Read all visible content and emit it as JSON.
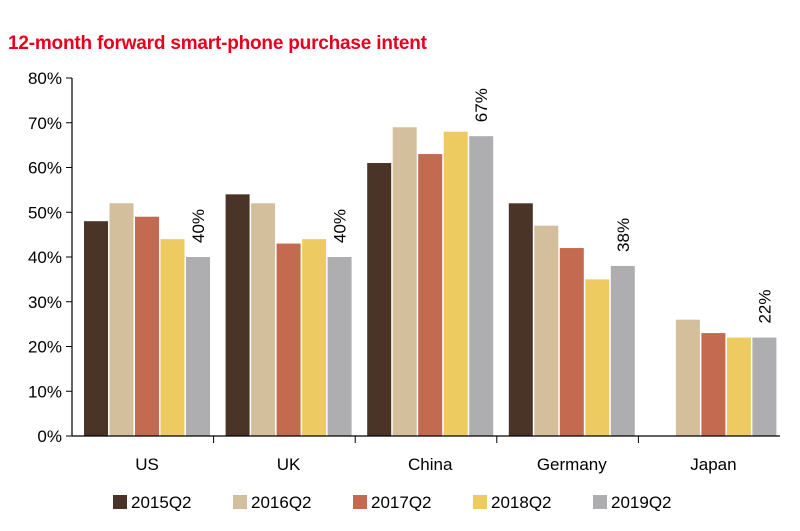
{
  "chart_data": {
    "type": "bar",
    "title": "12-month forward smart-phone purchase intent",
    "xlabel": "",
    "ylabel": "",
    "ylim": [
      0,
      0.8
    ],
    "yticks": [
      {
        "value": 0.8,
        "label": "80%"
      },
      {
        "value": 0.7,
        "label": "70%"
      },
      {
        "value": 0.6,
        "label": "60%"
      },
      {
        "value": 0.5,
        "label": "50%"
      },
      {
        "value": 0.4,
        "label": "40%"
      },
      {
        "value": 0.3,
        "label": "30%"
      },
      {
        "value": 0.2,
        "label": "20%"
      },
      {
        "value": 0.1,
        "label": "10%"
      },
      {
        "value": 0.0,
        "label": "0%"
      }
    ],
    "categories": [
      "US",
      "UK",
      "China",
      "Germany",
      "Japan"
    ],
    "series": [
      {
        "name": "2015Q2",
        "color": "#4a3428",
        "values": [
          0.48,
          0.54,
          0.61,
          0.52,
          null
        ]
      },
      {
        "name": "2016Q2",
        "color": "#d3bf9c",
        "values": [
          0.52,
          0.52,
          0.69,
          0.47,
          0.26
        ]
      },
      {
        "name": "2017Q2",
        "color": "#c46a50",
        "values": [
          0.49,
          0.43,
          0.63,
          0.42,
          0.23
        ]
      },
      {
        "name": "2018Q2",
        "color": "#eecb60",
        "values": [
          0.44,
          0.44,
          0.68,
          0.35,
          0.22
        ]
      },
      {
        "name": "2019Q2",
        "color": "#aeaeb0",
        "values": [
          0.4,
          0.4,
          0.67,
          0.38,
          0.22
        ]
      }
    ],
    "data_labels": [
      "40%",
      "40%",
      "67%",
      "38%",
      "22%"
    ],
    "grid": false,
    "legend_position": "bottom"
  }
}
